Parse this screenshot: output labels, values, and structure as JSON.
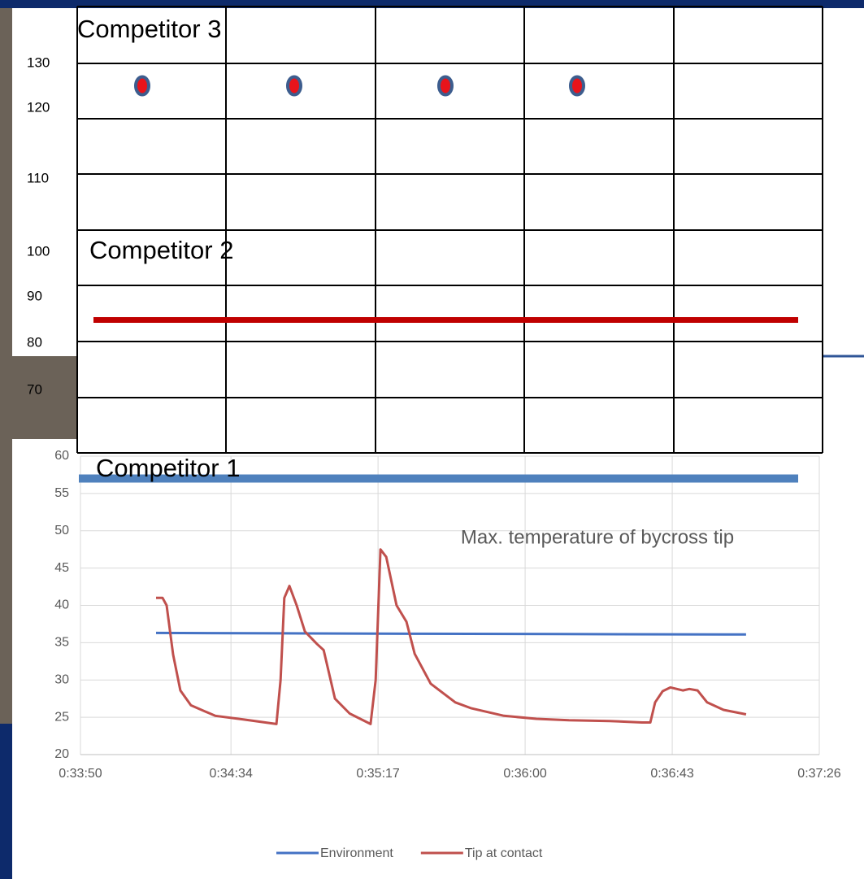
{
  "chart_data": {
    "type": "line",
    "title": "Max. temperature of bycross tip",
    "series": [
      {
        "name": "Environment",
        "color": "#4472c4",
        "x": [
          2052.1,
          2090,
          2130,
          2170,
          2224.6
        ],
        "values": [
          36.3,
          36.25,
          36.2,
          36.15,
          36.1
        ]
      },
      {
        "name": "Tip at contact",
        "color": "#c0504d",
        "x": [
          2052.1,
          2054.0,
          2055.2,
          2057.1,
          2059.2,
          2062.3,
          2069.4,
          2077.8,
          2087.3,
          2088.5,
          2089.6,
          2091.1,
          2093.2,
          2095.6,
          2099.2,
          2101.1,
          2104.4,
          2108.7,
          2114.8,
          2116.3,
          2117.7,
          2119.4,
          2122.4,
          2125.3,
          2127.7,
          2132.4,
          2139.6,
          2144.3,
          2153.8,
          2163.3,
          2172.8,
          2184.7,
          2194.2,
          2196.6,
          2198.0,
          2200.2,
          2202.5,
          2206.1,
          2208.0,
          2210.4,
          2213.2,
          2218.0,
          2224.6
        ],
        "values": [
          41,
          41,
          40,
          33.4,
          28.6,
          26.6,
          25.2,
          24.7,
          24.1,
          30,
          41,
          42.6,
          40,
          36.5,
          34.8,
          34,
          27.5,
          25.5,
          24.1,
          30,
          47.5,
          46.5,
          40,
          37.8,
          33.5,
          29.5,
          27,
          26.2,
          25.2,
          24.8,
          24.6,
          24.5,
          24.3,
          24.3,
          27,
          28.5,
          29,
          28.6,
          28.8,
          28.6,
          27,
          26,
          25.4
        ]
      }
    ],
    "xlim": [
      2030,
      2246
    ],
    "xticks": [
      {
        "value": 2030,
        "label": "0:33:50"
      },
      {
        "value": 2074,
        "label": "0:34:34"
      },
      {
        "value": 2117,
        "label": "0:35:17"
      },
      {
        "value": 2160,
        "label": "0:36:00"
      },
      {
        "value": 2203,
        "label": "0:36:43"
      },
      {
        "value": 2246,
        "label": "0:37:26"
      }
    ],
    "ylim": [
      20,
      60
    ],
    "yticks": [
      20,
      25,
      30,
      35,
      40,
      45,
      50,
      55,
      60
    ],
    "grid": true,
    "legend": "bottom"
  },
  "overlay": {
    "yticks": [
      130,
      120,
      110,
      100,
      90,
      80,
      70
    ],
    "competitor_3": {
      "label": "Competitor 3",
      "values": [
        125,
        125,
        125,
        125
      ]
    },
    "competitor_2": {
      "label": "Competitor 2",
      "value": 85
    },
    "competitor_1": {
      "label": "Competitor 1",
      "value": 57
    }
  }
}
